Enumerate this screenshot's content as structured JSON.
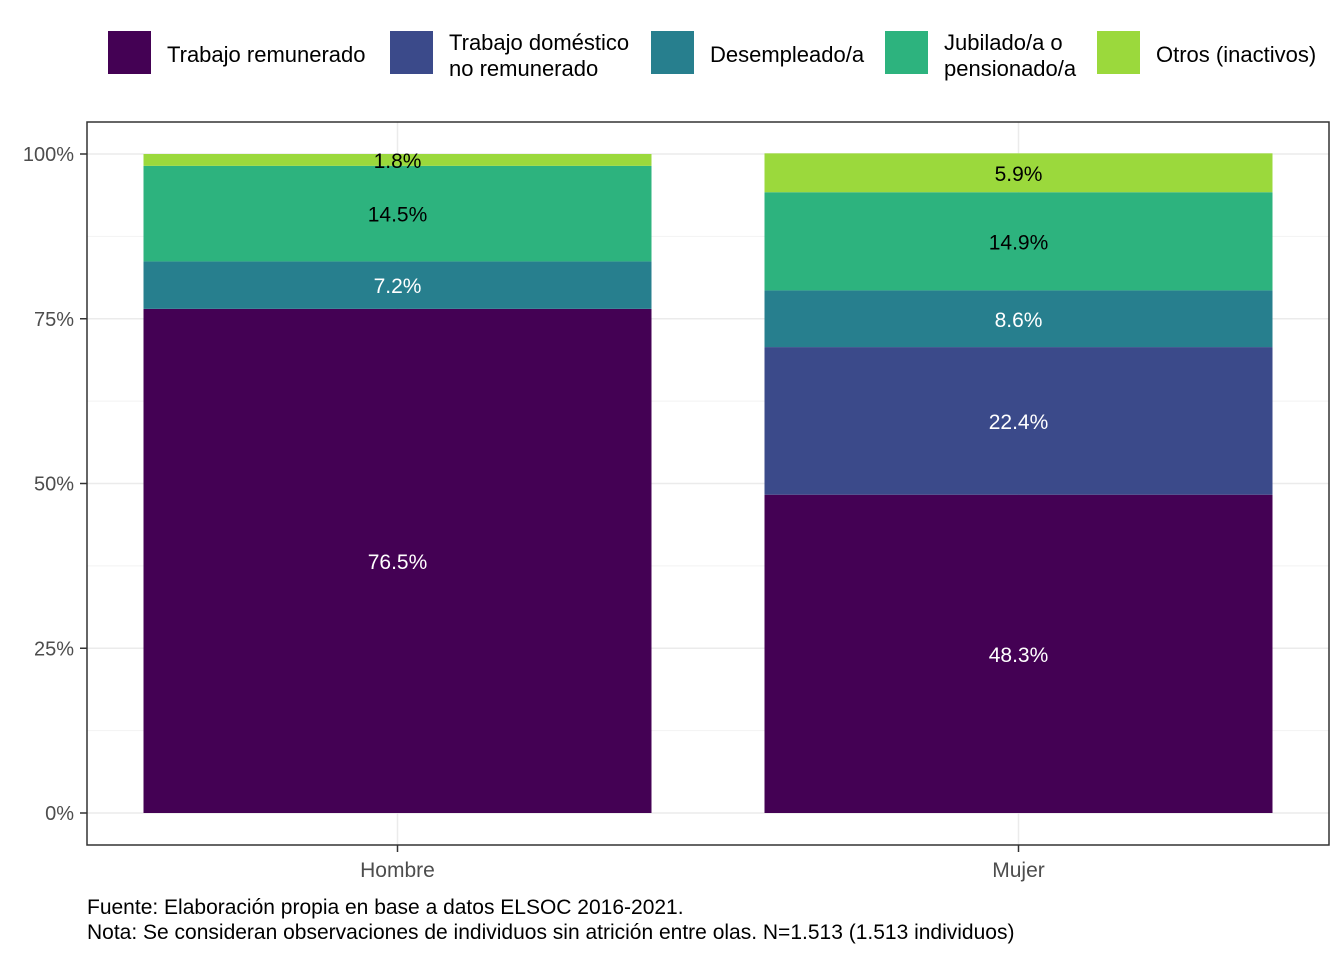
{
  "chart_data": {
    "type": "bar",
    "stacked": true,
    "categories": [
      "Hombre",
      "Mujer"
    ],
    "series": [
      {
        "name": "Trabajo remunerado",
        "color": "#440154",
        "values": [
          76.5,
          48.3
        ],
        "labels": [
          "76.5%",
          "48.3%"
        ],
        "label_color": "#ffffff"
      },
      {
        "name": "Trabajo doméstico no remunerado",
        "color": "#3B4A8A",
        "values": [
          0,
          22.4
        ],
        "labels": [
          "",
          "22.4%"
        ],
        "label_color": "#ffffff"
      },
      {
        "name": "Desempleado/a",
        "color": "#277F8E",
        "values": [
          7.2,
          8.6
        ],
        "labels": [
          "7.2%",
          "8.6%"
        ],
        "label_color": "#ffffff"
      },
      {
        "name": "Jubilado/a o pensionado/a",
        "color": "#2DB37E",
        "values": [
          14.5,
          14.9
        ],
        "labels": [
          "14.5%",
          "14.9%"
        ],
        "label_color": "#000000"
      },
      {
        "name": "Otros (inactivos)",
        "color": "#9BD93C",
        "values": [
          1.8,
          5.9
        ],
        "labels": [
          "1.8%",
          "5.9%"
        ],
        "label_color": "#000000"
      }
    ],
    "legend_lines": [
      [
        "Trabajo remunerado"
      ],
      [
        "Trabajo doméstico",
        "no remunerado"
      ],
      [
        "Desempleado/a"
      ],
      [
        "Jubilado/a o",
        "pensionado/a"
      ],
      [
        "Otros (inactivos)"
      ]
    ],
    "y_ticks": [
      0,
      25,
      50,
      75,
      100
    ],
    "y_tick_labels": [
      "0%",
      "25%",
      "50%",
      "75%",
      "100%"
    ],
    "ylim": [
      0,
      100
    ],
    "legend_position": "top",
    "grid": true
  },
  "caption": {
    "source": "Fuente: Elaboración propia en base a datos ELSOC 2016-2021.",
    "note": "Nota: Se consideran observaciones de individuos sin atrición entre olas. N=1.513 (1.513 individuos)"
  }
}
